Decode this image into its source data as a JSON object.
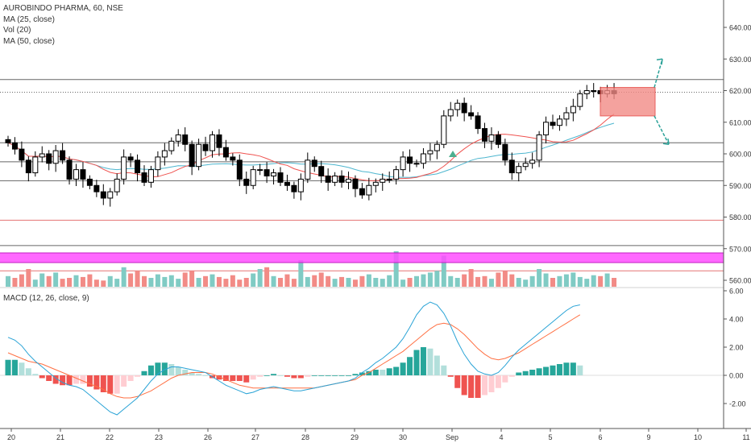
{
  "legend": {
    "symbol_line": "AUROBINDO PHARMA, 60, NSE",
    "ma25": "MA (25, close)",
    "vol": "Vol (20)",
    "ma50": "MA (50, close)"
  },
  "macd_label": "MACD (12, 26, close, 9)",
  "colors": {
    "up": "#26a69a",
    "down": "#000000",
    "ma25": "#ef5350",
    "ma50": "#4db6cf",
    "vol_up": "#80cbc4",
    "vol_down": "#f28b86",
    "magenta": "#ff4dff",
    "signal_box": "#f28b86",
    "arrow": "#2aa198"
  },
  "chart_data": [
    {
      "type": "candlestick",
      "title": "AUROBINDO PHARMA, 60, NSE",
      "ylim": [
        557,
        645
      ],
      "yticks": [
        560,
        570,
        580,
        590,
        600,
        610,
        620,
        630,
        640
      ],
      "ytick_labels": [
        "560.00",
        "570.00",
        "580.00",
        "590.00",
        "600.00",
        "610.00",
        "620.00",
        "630.00",
        "640.00"
      ],
      "xtick_labels": [
        "20",
        "21",
        "22",
        "23",
        "26",
        "27",
        "28",
        "29",
        "30",
        "Sep",
        "4",
        "5",
        "6",
        "9",
        "10",
        "11"
      ],
      "close": [
        603.5,
        601.5,
        598,
        594,
        599,
        600,
        597,
        601,
        598,
        592,
        595,
        592,
        590,
        588,
        586,
        588,
        592,
        599,
        598,
        594,
        591,
        595,
        599,
        601,
        604,
        606,
        603,
        596,
        603,
        601,
        606,
        602,
        599,
        598,
        592,
        590,
        595,
        595,
        593,
        594,
        591,
        590,
        588,
        592,
        598,
        596,
        593,
        591,
        593,
        591,
        592,
        589,
        587,
        590,
        591,
        592,
        592,
        595,
        599,
        597,
        597,
        600,
        601,
        603,
        612,
        614,
        616,
        613,
        612,
        608,
        604,
        606,
        603,
        598,
        594,
        596,
        597,
        598,
        606,
        610,
        609,
        611,
        613,
        615,
        619,
        620,
        620,
        619,
        620,
        619
      ],
      "horizontal_lines": [
        623.5,
        619.5,
        603.5,
        597.5,
        591.5,
        579.0,
        571.0,
        563.0
      ],
      "signal_box": [
        612,
        621
      ],
      "annotation": "triangle-up near Sep"
    },
    {
      "type": "line",
      "title": "MACD (12, 26, close, 9)",
      "ylim": [
        -3,
        6.2
      ],
      "yticks": [
        -2,
        0,
        2,
        4,
        6
      ],
      "ytick_labels": [
        "-2.00",
        "0.00",
        "2.00",
        "4.00",
        "6.00"
      ],
      "macd": [
        2.7,
        2.5,
        2.1,
        1.5,
        1.0,
        0.6,
        0.2,
        -0.2,
        -0.5,
        -0.7,
        -0.8,
        -1.0,
        -1.4,
        -1.8,
        -2.2,
        -2.6,
        -2.8,
        -2.4,
        -2.0,
        -1.6,
        -1.0,
        -0.4,
        0.1,
        0.4,
        0.6,
        0.6,
        0.5,
        0.4,
        0.3,
        0.2,
        -0.1,
        -0.4,
        -0.7,
        -0.9,
        -1.1,
        -1.3,
        -1.2,
        -1.0,
        -0.9,
        -0.8,
        -0.9,
        -1.0,
        -1.1,
        -1.1,
        -1.0,
        -0.9,
        -0.8,
        -0.7,
        -0.6,
        -0.5,
        -0.4,
        -0.2,
        0.2,
        0.5,
        0.9,
        1.2,
        1.6,
        2.0,
        2.6,
        3.4,
        4.3,
        4.9,
        5.2,
        5.0,
        4.4,
        3.5,
        2.4,
        1.5,
        0.8,
        0.3,
        0.1,
        0.0,
        0.2,
        0.7,
        1.3,
        1.8,
        2.2,
        2.6,
        3.0,
        3.4,
        3.8,
        4.2,
        4.6,
        4.9,
        5.0
      ],
      "signal": [
        1.6,
        1.4,
        1.2,
        1.0,
        0.9,
        0.8,
        0.6,
        0.4,
        0.2,
        0.0,
        -0.2,
        -0.4,
        -0.6,
        -0.8,
        -1.0,
        -1.3,
        -1.5,
        -1.6,
        -1.6,
        -1.5,
        -1.3,
        -1.1,
        -0.8,
        -0.5,
        -0.2,
        0.0,
        0.1,
        0.2,
        0.2,
        0.2,
        0.1,
        -0.1,
        -0.3,
        -0.5,
        -0.7,
        -0.8,
        -0.9,
        -0.9,
        -0.9,
        -0.9,
        -0.9,
        -0.9,
        -0.9,
        -0.9,
        -0.9,
        -0.9,
        -0.8,
        -0.7,
        -0.6,
        -0.5,
        -0.4,
        -0.3,
        0.0,
        0.2,
        0.5,
        0.8,
        1.1,
        1.4,
        1.7,
        2.1,
        2.5,
        2.9,
        3.3,
        3.6,
        3.7,
        3.6,
        3.3,
        2.9,
        2.4,
        1.9,
        1.5,
        1.2,
        1.1,
        1.2,
        1.4,
        1.6,
        1.9,
        2.2,
        2.5,
        2.8,
        3.1,
        3.4,
        3.7,
        4.0,
        4.3
      ]
    }
  ]
}
